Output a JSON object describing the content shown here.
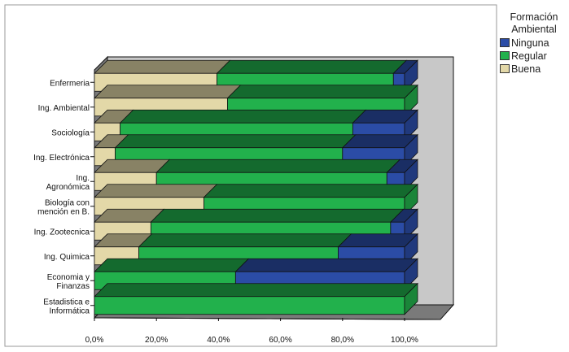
{
  "chart_data": {
    "type": "bar",
    "orientation": "horizontal",
    "stacked": true,
    "percent_stacked": true,
    "three_d": true,
    "categories": [
      "Enfermeria",
      "Ing. Ambiental",
      "Sociología",
      "Ing. Electrónica",
      "Ing.\nAgronómica",
      "Biología con\nmención en B.",
      "Ing. Zootecnica",
      "Ing. Quimica",
      "Economia y\nFinanzas",
      "Estadistica e\nInformática"
    ],
    "series": [
      {
        "name": "Buena",
        "values": [
          39.5,
          42.9,
          8.3,
          6.7,
          20.0,
          35.3,
          18.2,
          14.3,
          0,
          0
        ]
      },
      {
        "name": "Regular",
        "values": [
          56.9,
          57.1,
          75.0,
          73.3,
          74.3,
          64.7,
          77.3,
          64.3,
          45.5,
          100
        ]
      },
      {
        "name": "Ninguna",
        "values": [
          3.6,
          0,
          16.7,
          20.0,
          5.7,
          0,
          4.5,
          21.4,
          54.5,
          0
        ]
      }
    ],
    "x_ticks": [
      "0,0%",
      "20,0%",
      "40,0%",
      "60,0%",
      "80,0%",
      "100,0%"
    ],
    "xlim": [
      0,
      100
    ],
    "legend": {
      "title": "Formación\nAmbiental",
      "entries": [
        "Ninguna",
        "Regular",
        "Buena"
      ],
      "placement": "right"
    },
    "colors": {
      "Ninguna": "#2b4ca6",
      "Regular": "#22b14c",
      "Buena": "#e3d8a8",
      "wall": "#c8c8c8",
      "floor": "#7a7a7a",
      "outline": "#111111"
    },
    "grid": false
  }
}
